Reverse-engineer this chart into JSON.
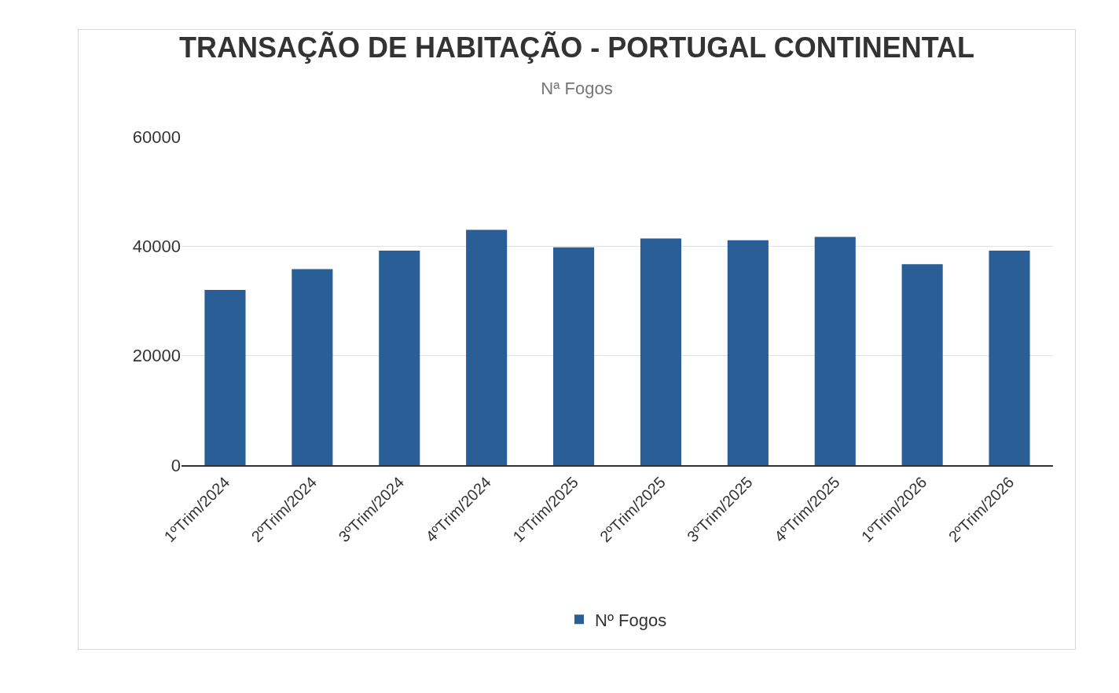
{
  "chart_data": {
    "type": "bar",
    "title": "TRANSAÇÃO DE HABITAÇÃO - PORTUGAL CONTINENTAL",
    "subtitle": "Nª Fogos",
    "categories": [
      "1ºTrim/2024",
      "2ºTrim/2024",
      "3ºTrim/2024",
      "4ºTrim/2024",
      "1ºTrim/2025",
      "2ºTrim/2025",
      "3ºTrim/2025",
      "4ºTrim/2025",
      "1ºTrim/2026",
      "2ºTrim/2026"
    ],
    "series": [
      {
        "name": "Nº Fogos",
        "color": "#295f96",
        "values": [
          32000,
          35800,
          39200,
          43000,
          39800,
          41400,
          41100,
          41700,
          36700,
          39200
        ]
      }
    ],
    "ylim": [
      0,
      60000
    ],
    "yticks": [
      0,
      20000,
      40000,
      60000
    ],
    "grid": "y",
    "legend": "bottom"
  }
}
